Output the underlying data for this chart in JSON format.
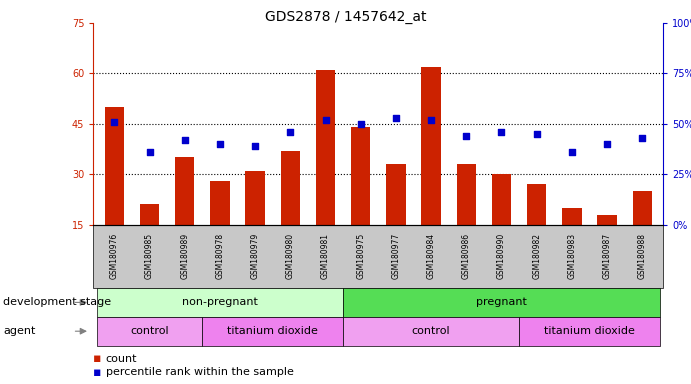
{
  "title": "GDS2878 / 1457642_at",
  "samples": [
    "GSM180976",
    "GSM180985",
    "GSM180989",
    "GSM180978",
    "GSM180979",
    "GSM180980",
    "GSM180981",
    "GSM180975",
    "GSM180977",
    "GSM180984",
    "GSM180986",
    "GSM180990",
    "GSM180982",
    "GSM180983",
    "GSM180987",
    "GSM180988"
  ],
  "counts": [
    50,
    21,
    35,
    28,
    31,
    37,
    61,
    44,
    33,
    62,
    33,
    30,
    27,
    20,
    18,
    25
  ],
  "percentile_ranks": [
    51,
    36,
    42,
    40,
    39,
    46,
    52,
    50,
    53,
    52,
    44,
    46,
    45,
    36,
    40,
    43
  ],
  "ylim_left": [
    15,
    75
  ],
  "ylim_right": [
    0,
    100
  ],
  "yticks_left": [
    15,
    30,
    45,
    60,
    75
  ],
  "yticks_right": [
    0,
    25,
    50,
    75,
    100
  ],
  "bar_color": "#cc2200",
  "dot_color": "#0000cc",
  "bg_color": "#ffffff",
  "tick_area_bg": "#c8c8c8",
  "dev_stage_bg_light": "#c8f5c8",
  "dev_stage_bg_dark": "#66cc66",
  "agent_bg": "#ee82ee",
  "groups_dev": [
    {
      "label": "non-pregnant",
      "start": 0,
      "end": 7,
      "color": "#ccffcc"
    },
    {
      "label": "pregnant",
      "start": 7,
      "end": 16,
      "color": "#55dd55"
    }
  ],
  "groups_agent": [
    {
      "label": "control",
      "start": 0,
      "end": 3,
      "color": "#f0a0f0"
    },
    {
      "label": "titanium dioxide",
      "start": 3,
      "end": 7,
      "color": "#ee82ee"
    },
    {
      "label": "control",
      "start": 7,
      "end": 12,
      "color": "#f0a0f0"
    },
    {
      "label": "titanium dioxide",
      "start": 12,
      "end": 16,
      "color": "#ee82ee"
    }
  ],
  "legend_count_label": "count",
  "legend_percentile_label": "percentile rank within the sample",
  "dev_stage_label": "development stage",
  "agent_label": "agent"
}
